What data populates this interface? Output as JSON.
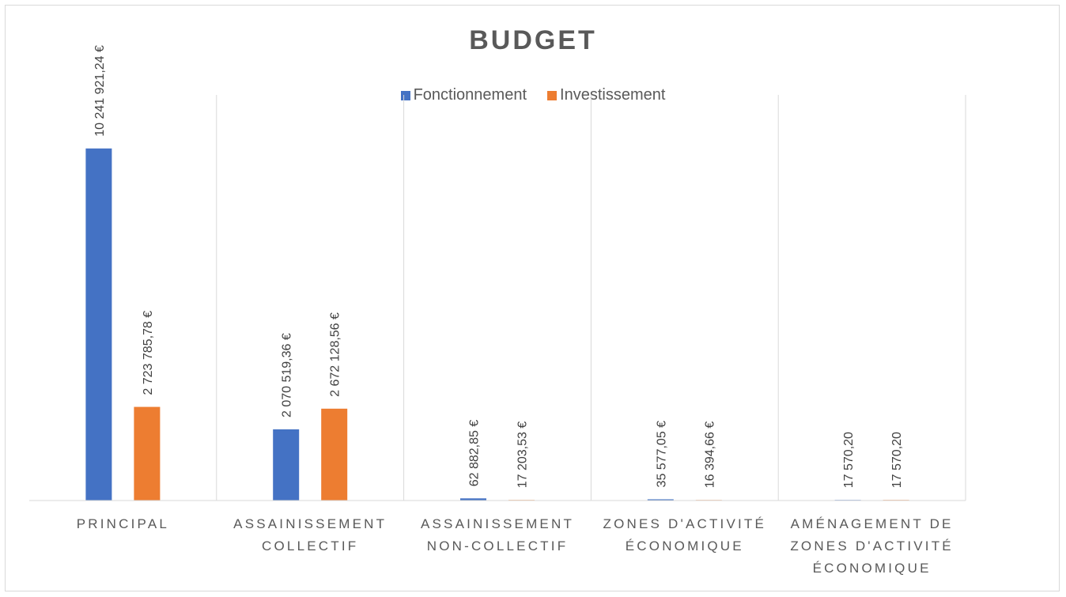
{
  "chart_data": {
    "type": "bar",
    "title": "BUDGET",
    "legend_position": "top",
    "grid": "vertical category separators",
    "categories": [
      [
        "PRINCIPAL"
      ],
      [
        "ASSAINISSEMENT",
        "COLLECTIF"
      ],
      [
        "ASSAINISSEMENT",
        "NON-COLLECTIF"
      ],
      [
        "ZONES D'ACTIVITÉ",
        "ÉCONOMIQUE"
      ],
      [
        "AMÉNAGEMENT DE",
        "ZONES D'ACTIVITÉ",
        "ÉCONOMIQUE"
      ]
    ],
    "series": [
      {
        "name": "Fonctionnement",
        "color": "#4472c4",
        "values": [
          10241921.24,
          2070519.36,
          62882.85,
          35577.05,
          17570.2
        ],
        "labels": [
          "10 241 921,24 €",
          "2 070 519,36 €",
          "62 882,85 €",
          "35 577,05 €",
          "17 570,20"
        ]
      },
      {
        "name": "Investissement",
        "color": "#ed7d31",
        "values": [
          2723785.78,
          2672128.56,
          17203.53,
          16394.66,
          17570.2
        ],
        "labels": [
          "2 723 785,78 €",
          "2 672 128,56 €",
          "17 203,53 €",
          "16 394,66 €",
          "17 570,20"
        ]
      }
    ],
    "ylim": [
      0,
      11800000
    ]
  }
}
